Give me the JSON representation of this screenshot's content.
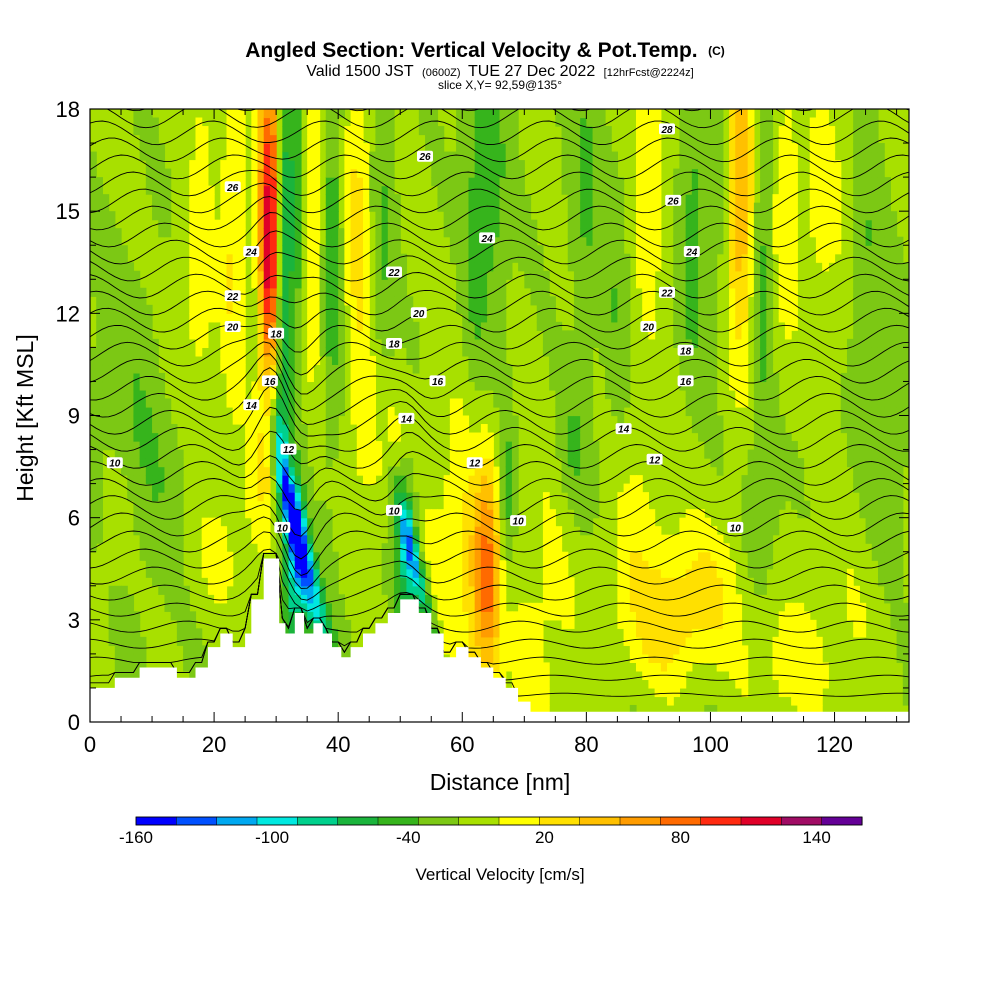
{
  "title": {
    "main": "Angled Section: Vertical Velocity & Pot.Temp.",
    "main_suffix": "(C)",
    "valid_prefix": "Valid 1500 JST",
    "valid_z": "(0600Z)",
    "valid_date": "TUE 27 Dec 2022",
    "valid_fcst": "[12hrFcst@2224z]",
    "slice": "slice X,Y= 92,59@135°"
  },
  "chart_data": {
    "type": "heatmap",
    "xlabel": "Distance [nm]",
    "ylabel": "Height [Kft MSL]",
    "xlim": [
      0,
      132
    ],
    "ylim": [
      0,
      18
    ],
    "x_ticks": [
      0,
      20,
      40,
      60,
      80,
      100,
      120
    ],
    "y_ticks": [
      0,
      3,
      6,
      9,
      12,
      15,
      18
    ],
    "x_tick_labels": [
      "0",
      "20",
      "40",
      "60",
      "80",
      "100",
      "120"
    ],
    "y_tick_labels": [
      "0",
      "3",
      "6",
      "9",
      "12",
      "15",
      "18"
    ],
    "colorbar": {
      "label": "Vertical Velocity [cm/s]",
      "min": -160,
      "max": 160,
      "step": 20,
      "tick_values": [
        -160,
        -100,
        -40,
        20,
        80,
        140
      ],
      "tick_labels": [
        "-160",
        "-100",
        "-40",
        "20",
        "80",
        "140"
      ],
      "colors": [
        "#0000ff",
        "#0050ff",
        "#00a8f0",
        "#00e8e0",
        "#00d08c",
        "#1ab43c",
        "#36b41c",
        "#7cc814",
        "#a8e000",
        "#ffff00",
        "#ffe000",
        "#ffc000",
        "#ff9c00",
        "#ff6a00",
        "#ff2a10",
        "#e00028",
        "#a00c64",
        "#640096"
      ]
    },
    "terrain": {
      "x": [
        0,
        4,
        4,
        8,
        8,
        14,
        14,
        17,
        17,
        19,
        19,
        21,
        21,
        23,
        23,
        25,
        25,
        26,
        26,
        28,
        28,
        30.5,
        30.5,
        31.5,
        31.5,
        33,
        33,
        34.5,
        34.5,
        36,
        36,
        37.5,
        37.5,
        39,
        39,
        40.5,
        40.5,
        42,
        42,
        44,
        44,
        46,
        46,
        48,
        48,
        50,
        50,
        53,
        53,
        55,
        55,
        57,
        57,
        59,
        59,
        61,
        61,
        63,
        63,
        65,
        65,
        67,
        67,
        69,
        69,
        71,
        71,
        132
      ],
      "z": [
        1.0,
        1.0,
        1.3,
        1.3,
        1.6,
        1.6,
        1.3,
        1.3,
        1.6,
        1.6,
        2.2,
        2.2,
        2.6,
        2.6,
        2.2,
        2.2,
        2.6,
        2.6,
        3.6,
        3.6,
        4.8,
        4.8,
        2.9,
        2.9,
        2.6,
        2.6,
        3.2,
        3.2,
        2.6,
        2.6,
        2.9,
        2.9,
        2.6,
        2.6,
        2.2,
        2.2,
        1.9,
        1.9,
        2.2,
        2.2,
        2.6,
        2.6,
        2.9,
        2.9,
        3.2,
        3.2,
        3.6,
        3.6,
        3.2,
        3.2,
        2.6,
        2.6,
        1.9,
        1.9,
        2.2,
        2.2,
        1.9,
        1.9,
        1.6,
        1.6,
        1.3,
        1.3,
        1.0,
        1.0,
        0.6,
        0.6,
        0.3,
        0.3
      ]
    },
    "isentrope_labels": [
      {
        "value": "10",
        "x": 4,
        "z": 7.6
      },
      {
        "value": "10",
        "x": 31,
        "z": 5.7
      },
      {
        "value": "10",
        "x": 49,
        "z": 6.2
      },
      {
        "value": "10",
        "x": 69,
        "z": 5.9
      },
      {
        "value": "10",
        "x": 104,
        "z": 5.7
      },
      {
        "value": "12",
        "x": 32,
        "z": 8.0
      },
      {
        "value": "12",
        "x": 62,
        "z": 7.6
      },
      {
        "value": "12",
        "x": 91,
        "z": 7.7
      },
      {
        "value": "14",
        "x": 26,
        "z": 9.3
      },
      {
        "value": "14",
        "x": 51,
        "z": 8.9
      },
      {
        "value": "14",
        "x": 86,
        "z": 8.6
      },
      {
        "value": "16",
        "x": 29,
        "z": 10.0
      },
      {
        "value": "16",
        "x": 56,
        "z": 10.0
      },
      {
        "value": "16",
        "x": 96,
        "z": 10.0
      },
      {
        "value": "18",
        "x": 30,
        "z": 11.4
      },
      {
        "value": "18",
        "x": 49,
        "z": 11.1
      },
      {
        "value": "18",
        "x": 96,
        "z": 10.9
      },
      {
        "value": "20",
        "x": 23,
        "z": 11.6
      },
      {
        "value": "20",
        "x": 53,
        "z": 12.0
      },
      {
        "value": "20",
        "x": 90,
        "z": 11.6
      },
      {
        "value": "22",
        "x": 23,
        "z": 12.5
      },
      {
        "value": "22",
        "x": 49,
        "z": 13.2
      },
      {
        "value": "22",
        "x": 93,
        "z": 12.6
      },
      {
        "value": "24",
        "x": 26,
        "z": 13.8
      },
      {
        "value": "24",
        "x": 64,
        "z": 14.2
      },
      {
        "value": "24",
        "x": 97,
        "z": 13.8
      },
      {
        "value": "26",
        "x": 23,
        "z": 15.7
      },
      {
        "value": "26",
        "x": 54,
        "z": 16.6
      },
      {
        "value": "26",
        "x": 94,
        "z": 15.3
      },
      {
        "value": "28",
        "x": 93,
        "z": 17.4
      }
    ]
  }
}
